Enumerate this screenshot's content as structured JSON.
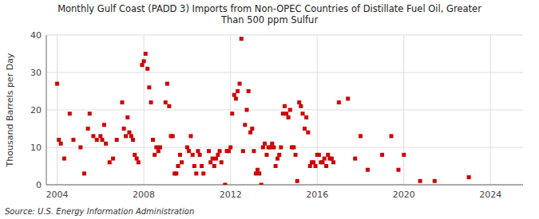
{
  "chart_data": {
    "type": "scatter",
    "title": "Monthly Gulf Coast (PADD 3) Imports from Non-OPEC Countries of Distillate Fuel Oil, Greater\nThan 500 ppm Sulfur",
    "y_label": "Thousand Barrels per Day",
    "source": "Source: U.S. Energy Information Administration",
    "color": "#cc0000",
    "marker": "square",
    "grid": true,
    "xlim": [
      2003.5,
      2025.5
    ],
    "xticks": [
      2004,
      2008,
      2012,
      2016,
      2020,
      2024
    ],
    "ylim": [
      0,
      40
    ],
    "yticks": [
      0,
      10,
      20,
      30,
      40
    ],
    "x": [
      2004.0,
      2004.08,
      2004.17,
      2004.33,
      2004.58,
      2004.75,
      2005.08,
      2005.25,
      2005.42,
      2005.5,
      2005.67,
      2005.83,
      2006.0,
      2006.08,
      2006.17,
      2006.25,
      2006.42,
      2006.58,
      2006.75,
      2007.0,
      2007.08,
      2007.17,
      2007.25,
      2007.33,
      2007.42,
      2007.5,
      2007.58,
      2007.67,
      2007.75,
      2007.92,
      2008.0,
      2008.08,
      2008.17,
      2008.25,
      2008.33,
      2008.42,
      2008.5,
      2008.58,
      2008.67,
      2008.75,
      2009.0,
      2009.08,
      2009.17,
      2009.25,
      2009.33,
      2009.42,
      2009.5,
      2009.58,
      2009.67,
      2009.75,
      2010.0,
      2010.08,
      2010.17,
      2010.25,
      2010.33,
      2010.42,
      2010.5,
      2010.58,
      2010.67,
      2010.75,
      2011.0,
      2011.08,
      2011.17,
      2011.25,
      2011.33,
      2011.42,
      2011.5,
      2011.58,
      2011.75,
      2011.83,
      2011.92,
      2012.0,
      2012.08,
      2012.17,
      2012.25,
      2012.33,
      2012.42,
      2012.5,
      2012.58,
      2012.67,
      2012.75,
      2012.83,
      2012.92,
      2013.0,
      2013.08,
      2013.17,
      2013.25,
      2013.33,
      2013.42,
      2013.5,
      2013.58,
      2013.67,
      2013.75,
      2013.83,
      2013.92,
      2014.0,
      2014.08,
      2014.17,
      2014.25,
      2014.33,
      2014.42,
      2014.5,
      2014.58,
      2014.67,
      2014.75,
      2014.83,
      2014.92,
      2015.0,
      2015.08,
      2015.17,
      2015.25,
      2015.33,
      2015.42,
      2015.5,
      2015.58,
      2015.67,
      2015.75,
      2015.83,
      2015.92,
      2016.0,
      2016.08,
      2016.17,
      2016.25,
      2016.33,
      2016.42,
      2016.5,
      2016.58,
      2016.67,
      2016.75,
      2017.0,
      2017.42,
      2017.75,
      2018.0,
      2018.33,
      2019.0,
      2019.42,
      2019.75,
      2020.0,
      2020.75,
      2021.42,
      2023.0
    ],
    "values": [
      27,
      12,
      11,
      7,
      19,
      12,
      10,
      3,
      15,
      19,
      13,
      12,
      13,
      12,
      16,
      11,
      6,
      7,
      12,
      22,
      15,
      13,
      18,
      14,
      13,
      12,
      8,
      7,
      6,
      32,
      33,
      35,
      31,
      26,
      22,
      12,
      8,
      10,
      9,
      10,
      22,
      27,
      21,
      13,
      13,
      3,
      3,
      5,
      8,
      6,
      10,
      9,
      13,
      8,
      5,
      3,
      9,
      8,
      5,
      3,
      9,
      6,
      7,
      5,
      7,
      8,
      9,
      6,
      0,
      9,
      9,
      10,
      19,
      24,
      23,
      25,
      27,
      39,
      9,
      16,
      20,
      25,
      14,
      15,
      9,
      3,
      4,
      3,
      0,
      10,
      11,
      8,
      10,
      10,
      11,
      10,
      5,
      7,
      8,
      10,
      19,
      21,
      19,
      18,
      20,
      10,
      10,
      8,
      1,
      22,
      21,
      19,
      15,
      18,
      14,
      5,
      6,
      6,
      5,
      8,
      8,
      6,
      6,
      7,
      5,
      8,
      7,
      7,
      6,
      22,
      23,
      7,
      13,
      4,
      8,
      13,
      4,
      8,
      1,
      1,
      2
    ]
  }
}
